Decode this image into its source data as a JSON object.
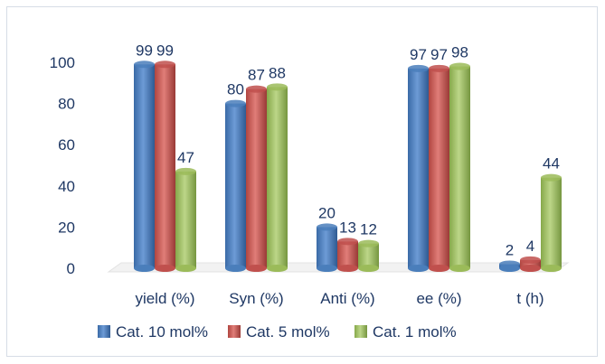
{
  "chart_data": {
    "type": "bar",
    "categories": [
      "yield (%)",
      "Syn (%)",
      "Anti (%)",
      "ee (%)",
      "t (h)"
    ],
    "series": [
      {
        "name": "Cat. 10 mol%",
        "values": [
          99,
          80,
          20,
          97,
          2
        ],
        "labels": [
          "99",
          "80",
          "20",
          "97",
          "2"
        ],
        "color": "#4a7ebb"
      },
      {
        "name": "Cat. 5 mol%",
        "values": [
          99,
          87,
          13,
          97,
          4
        ],
        "labels": [
          "99",
          "87",
          "13",
          "97",
          "4"
        ],
        "color": "#c0504d"
      },
      {
        "name": "Cat. 1 mol%",
        "values": [
          47,
          88,
          12,
          98,
          44
        ],
        "labels": [
          "47",
          "88",
          "12",
          "98",
          "44"
        ],
        "color": "#9bbb59"
      }
    ],
    "ylim": [
      0,
      100
    ],
    "yticks": [
      "0",
      "20",
      "40",
      "60",
      "80",
      "100"
    ],
    "grid": false,
    "legend_position": "bottom",
    "title": "",
    "xlabel": "",
    "ylabel": ""
  }
}
